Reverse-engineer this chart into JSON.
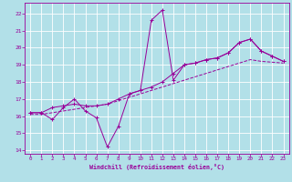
{
  "xlabel": "Windchill (Refroidissement éolien,°C)",
  "bg_color": "#b2e0e8",
  "grid_color": "#ffffff",
  "line_color": "#990099",
  "xlim": [
    -0.5,
    23.5
  ],
  "ylim": [
    13.8,
    22.6
  ],
  "xticks": [
    0,
    1,
    2,
    3,
    4,
    5,
    6,
    7,
    8,
    9,
    10,
    11,
    12,
    13,
    14,
    15,
    16,
    17,
    18,
    19,
    20,
    21,
    22,
    23
  ],
  "yticks": [
    14,
    15,
    16,
    17,
    18,
    19,
    20,
    21,
    22
  ],
  "series1_x": [
    0,
    1,
    2,
    3,
    4,
    5,
    6,
    7,
    8,
    9,
    10,
    11,
    12,
    13,
    14,
    15,
    16,
    17,
    18,
    19,
    20,
    21,
    22,
    23
  ],
  "series1_y": [
    16.2,
    16.2,
    15.8,
    16.5,
    17.0,
    16.3,
    15.9,
    14.2,
    15.4,
    17.3,
    17.5,
    21.6,
    22.2,
    18.1,
    19.0,
    19.1,
    19.3,
    19.4,
    19.7,
    20.3,
    20.5,
    19.8,
    19.5,
    19.2
  ],
  "series2_x": [
    0,
    1,
    2,
    3,
    4,
    5,
    6,
    7,
    8,
    9,
    10,
    11,
    12,
    13,
    14,
    15,
    16,
    17,
    18,
    19,
    20,
    21,
    22,
    23
  ],
  "series2_y": [
    16.2,
    16.2,
    16.5,
    16.6,
    16.7,
    16.6,
    16.6,
    16.7,
    17.0,
    17.3,
    17.5,
    17.7,
    18.0,
    18.5,
    19.0,
    19.1,
    19.3,
    19.4,
    19.7,
    20.3,
    20.5,
    19.8,
    19.5,
    19.2
  ],
  "series3_x": [
    0,
    1,
    2,
    3,
    4,
    5,
    6,
    7,
    8,
    9,
    10,
    11,
    12,
    13,
    14,
    15,
    16,
    17,
    18,
    19,
    20,
    21,
    22,
    23
  ],
  "series3_y": [
    16.1,
    16.1,
    16.2,
    16.3,
    16.4,
    16.5,
    16.6,
    16.7,
    16.9,
    17.1,
    17.3,
    17.5,
    17.7,
    17.9,
    18.1,
    18.3,
    18.5,
    18.7,
    18.9,
    19.1,
    19.3,
    19.2,
    19.15,
    19.1
  ]
}
